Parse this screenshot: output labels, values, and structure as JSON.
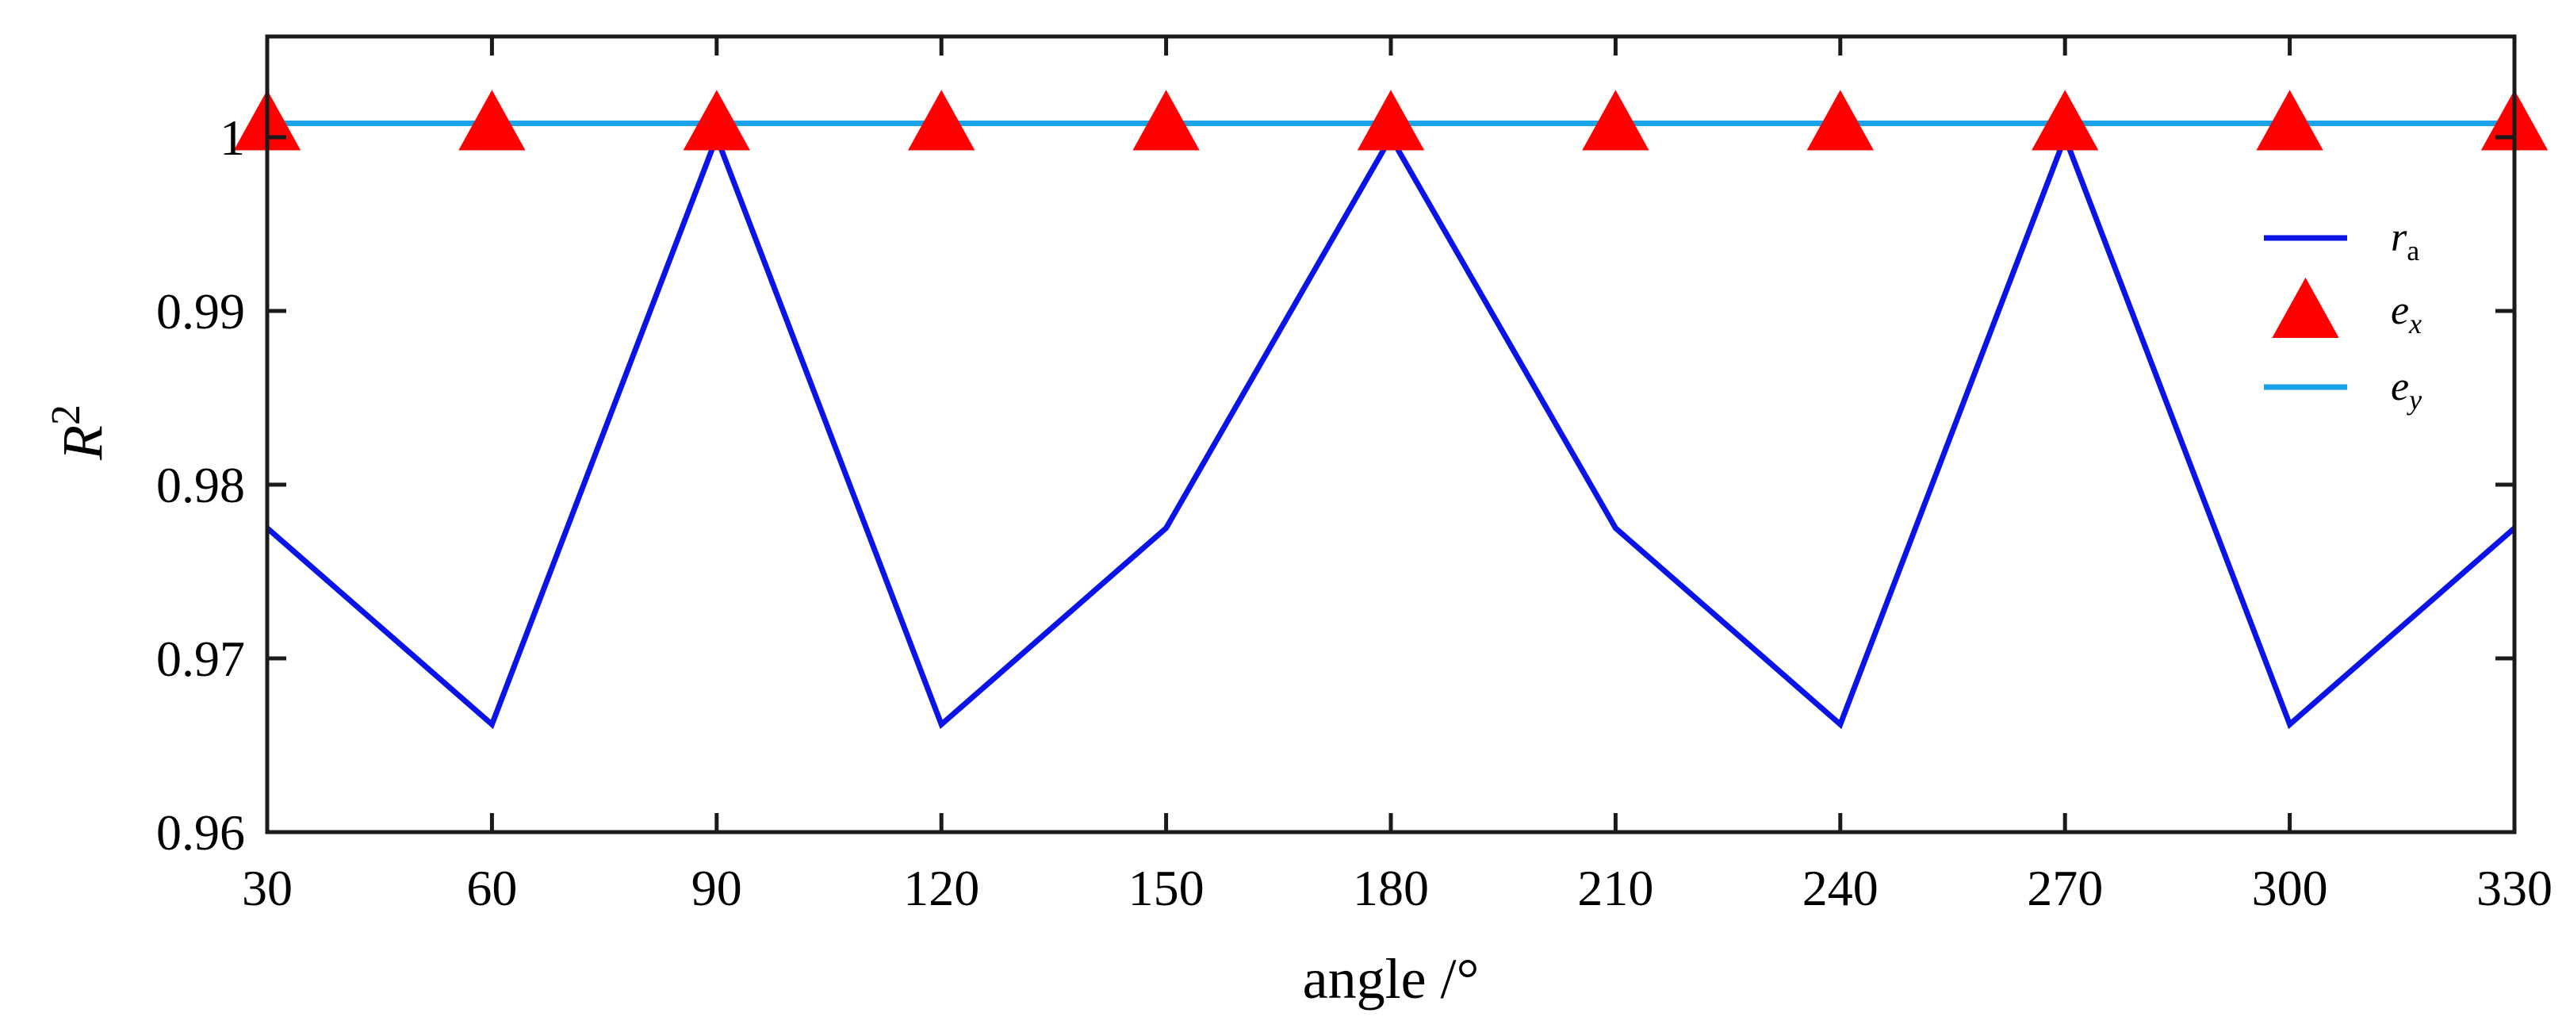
{
  "chart_data": {
    "type": "line",
    "title": "",
    "xlabel": "angle /°",
    "ylabel_base": "R",
    "ylabel_superscript": "2",
    "x": [
      30,
      60,
      90,
      120,
      150,
      180,
      210,
      240,
      270,
      300,
      330
    ],
    "xlim": [
      30,
      330
    ],
    "ylim": [
      0.96,
      1.0058
    ],
    "xticks": [
      "30",
      "60",
      "90",
      "120",
      "150",
      "180",
      "210",
      "240",
      "270",
      "300",
      "330"
    ],
    "yticks": [
      {
        "value": 0.96,
        "label": "0.96"
      },
      {
        "value": 0.97,
        "label": "0.97"
      },
      {
        "value": 0.98,
        "label": "0.98"
      },
      {
        "value": 0.99,
        "label": "0.99"
      },
      {
        "value": 1.0,
        "label": "1"
      }
    ],
    "grid": false,
    "legend_position": "right",
    "series": [
      {
        "name": "r",
        "subscript": "a",
        "style": "line",
        "color": "#0a14e6",
        "values": [
          0.9775,
          0.9662,
          1.0,
          0.9662,
          0.9775,
          1.0,
          0.9775,
          0.9662,
          1.0,
          0.9662,
          0.9775
        ]
      },
      {
        "name": "e",
        "subscript": "x",
        "style": "marker-triangle",
        "color": "#ff0000",
        "values": [
          1.0008,
          1.0008,
          1.0008,
          1.0008,
          1.0008,
          1.0008,
          1.0008,
          1.0008,
          1.0008,
          1.0008,
          1.0008
        ]
      },
      {
        "name": "e",
        "subscript": "y",
        "style": "line",
        "color": "#1aa3e8",
        "values": [
          1.0008,
          1.0008,
          1.0008,
          1.0008,
          1.0008,
          1.0008,
          1.0008,
          1.0008,
          1.0008,
          1.0008,
          1.0008
        ]
      }
    ]
  }
}
